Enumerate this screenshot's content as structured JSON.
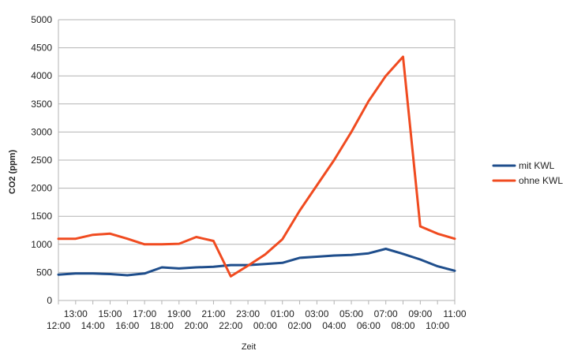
{
  "chart_data": {
    "type": "line",
    "title": "",
    "xlabel": "Zeit",
    "ylabel": "CO2 (ppm)",
    "ylim": [
      0,
      5000
    ],
    "y_ticks": [
      0,
      500,
      1000,
      1500,
      2000,
      2500,
      3000,
      3500,
      4000,
      4500,
      5000
    ],
    "categories": [
      "12:00",
      "13:00",
      "14:00",
      "15:00",
      "16:00",
      "17:00",
      "18:00",
      "19:00",
      "20:00",
      "21:00",
      "22:00",
      "23:00",
      "00:00",
      "01:00",
      "02:00",
      "03:00",
      "04:00",
      "05:00",
      "06:00",
      "07:00",
      "08:00",
      "09:00",
      "10:00",
      "11:00"
    ],
    "grid": "horizontal",
    "legend_position": "right",
    "series": [
      {
        "name": "mit KWL",
        "color": "#1f4e8c",
        "values": [
          460,
          480,
          480,
          470,
          450,
          480,
          590,
          570,
          590,
          600,
          630,
          630,
          650,
          670,
          760,
          780,
          800,
          810,
          840,
          920,
          830,
          730,
          610,
          530
        ]
      },
      {
        "name": "ohne KWL",
        "color": "#f04b20",
        "values": [
          1100,
          1100,
          1170,
          1190,
          1100,
          1000,
          1000,
          1010,
          1130,
          1060,
          430,
          620,
          820,
          1090,
          1600,
          2050,
          2500,
          3000,
          3550,
          4000,
          4340,
          1320,
          1190,
          1100
        ]
      }
    ]
  }
}
